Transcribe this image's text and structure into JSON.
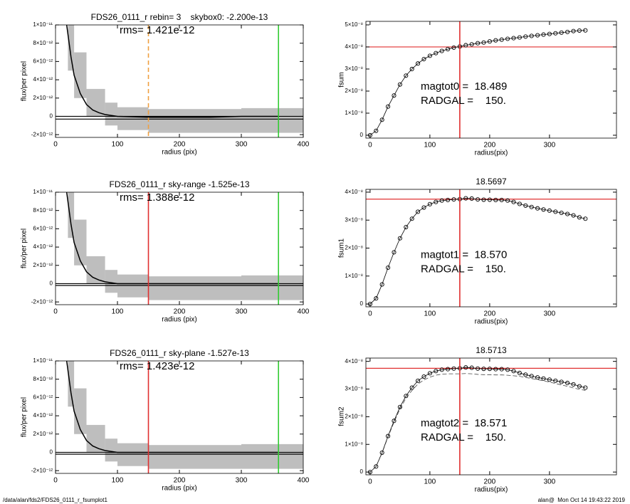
{
  "chart_data": [
    {
      "type": "line",
      "title": "FDS26_0111_r rebin= 3    skybox0: -2.200e-13",
      "xlabel": "radius (pix)",
      "ylabel": "flux/per pixel",
      "annotations": [
        "rms= 1.421e-12"
      ],
      "xlim": [
        0,
        400
      ],
      "xticks": [
        0,
        100,
        200,
        300,
        400
      ],
      "ylim": [
        -2.3e-12,
        1e-11
      ],
      "yticks": [
        {
          "value": -2e-12,
          "label": "-2×10⁻¹²"
        },
        0,
        {
          "value": 2e-12,
          "label": "2×10⁻¹²"
        },
        {
          "value": 4e-12,
          "label": "4×10⁻¹²"
        },
        {
          "value": 6e-12,
          "label": "6×10⁻¹²"
        },
        {
          "value": 8e-12,
          "label": "8×10⁻¹²"
        },
        {
          "value": 1e-11,
          "label": "1×10⁻¹¹"
        }
      ],
      "band": {
        "color": "#a8a8a8",
        "x": [
          20,
          30,
          50,
          80,
          100,
          150,
          200,
          300,
          350
        ],
        "upper": [
          1e-11,
          7e-12,
          3e-12,
          1.5e-12,
          1e-12,
          8e-13,
          8e-13,
          9e-13,
          9e-13
        ],
        "lower": [
          5e-12,
          2e-12,
          0,
          -1e-12,
          -1.5e-12,
          -1.8e-12,
          -1.8e-12,
          -1.8e-12,
          -1.8e-12
        ]
      },
      "x": [
        18,
        25,
        30,
        40,
        50,
        60,
        70,
        80,
        100,
        150,
        200,
        250,
        300,
        360
      ],
      "series": [
        {
          "color": "#000000",
          "values": [
            1e-11,
            6.5e-12,
            4.5e-12,
            2.5e-12,
            1.3e-12,
            7e-13,
            4e-13,
            2e-13,
            0,
            -1e-13,
            -1e-13,
            -1e-13,
            0,
            0
          ]
        }
      ],
      "hlines": [
        {
          "y": 0,
          "color": "#000000"
        },
        {
          "y": -3e-13,
          "color": "#000000"
        }
      ],
      "vlines": [
        {
          "x": 150,
          "color": "#f0a040",
          "dash": true
        },
        {
          "x": 360,
          "color": "#33cc33"
        }
      ]
    },
    {
      "type": "scatter",
      "xlabel": "radius(pix)",
      "ylabel": "fsum",
      "annotations": [
        "magtot0 =  18.489",
        "RADGAL =    150."
      ],
      "xlim": [
        -7,
        412
      ],
      "xticks": [
        0,
        100,
        200,
        300
      ],
      "ylim": [
        -1.3e-09,
        5.16e-08
      ],
      "yticks": [
        0,
        {
          "value": 1e-08,
          "label": "1×10⁻⁸"
        },
        {
          "value": 2e-08,
          "label": "2×10⁻⁸"
        },
        {
          "value": 3e-08,
          "label": "3×10⁻⁸"
        },
        {
          "value": 4e-08,
          "label": "4×10⁻⁸"
        },
        {
          "value": 5e-08,
          "label": "5×10⁻⁸"
        }
      ],
      "x": [
        0,
        10,
        20,
        30,
        40,
        50,
        60,
        70,
        80,
        90,
        100,
        110,
        120,
        130,
        140,
        150,
        160,
        170,
        180,
        190,
        200,
        210,
        220,
        230,
        240,
        250,
        260,
        270,
        280,
        290,
        300,
        310,
        320,
        330,
        340,
        350,
        360
      ],
      "series": [
        {
          "color": "#000000",
          "values": [
            0,
            2e-09,
            7e-09,
            1.3e-08,
            1.8e-08,
            2.3e-08,
            2.7e-08,
            3e-08,
            3.25e-08,
            3.45e-08,
            3.6e-08,
            3.72e-08,
            3.82e-08,
            3.9e-08,
            3.97e-08,
            4.02e-08,
            4.08e-08,
            4.12e-08,
            4.17e-08,
            4.2e-08,
            4.25e-08,
            4.3e-08,
            4.33e-08,
            4.37e-08,
            4.4e-08,
            4.43e-08,
            4.47e-08,
            4.5e-08,
            4.53e-08,
            4.56e-08,
            4.59e-08,
            4.62e-08,
            4.65e-08,
            4.68e-08,
            4.72e-08,
            4.74e-08,
            4.75e-08
          ]
        }
      ],
      "hlines": [
        {
          "y": 4e-08,
          "color": "#e03030"
        }
      ],
      "vlines": [
        {
          "x": 150,
          "color": "#e03030"
        }
      ]
    },
    {
      "type": "line",
      "title": "FDS26_0111_r sky-range -1.525e-13",
      "xlabel": "radius (pix)",
      "ylabel": "flux/per pixel",
      "annotations": [
        "rms= 1.388e-12"
      ],
      "xlim": [
        0,
        400
      ],
      "xticks": [
        0,
        100,
        200,
        300,
        400
      ],
      "ylim": [
        -2.3e-12,
        1e-11
      ],
      "yticks": [
        {
          "value": -2e-12,
          "label": "-2×10⁻¹²"
        },
        0,
        {
          "value": 2e-12,
          "label": "2×10⁻¹²"
        },
        {
          "value": 4e-12,
          "label": "4×10⁻¹²"
        },
        {
          "value": 6e-12,
          "label": "6×10⁻¹²"
        },
        {
          "value": 8e-12,
          "label": "8×10⁻¹²"
        },
        {
          "value": 1e-11,
          "label": "1×10⁻¹¹"
        }
      ],
      "band": {
        "color": "#a8a8a8",
        "x": [
          20,
          30,
          50,
          80,
          100,
          150,
          200,
          300,
          350
        ],
        "upper": [
          1e-11,
          7e-12,
          3e-12,
          1.5e-12,
          1e-12,
          8e-13,
          8e-13,
          9e-13,
          9e-13
        ],
        "lower": [
          5e-12,
          2e-12,
          0,
          -1e-12,
          -1.5e-12,
          -1.8e-12,
          -1.8e-12,
          -1.8e-12,
          -1.8e-12
        ]
      },
      "x": [
        18,
        25,
        30,
        40,
        50,
        60,
        70,
        80,
        100,
        150,
        200,
        250,
        300,
        360
      ],
      "series": [
        {
          "color": "#000000",
          "values": [
            1e-11,
            6.5e-12,
            4.5e-12,
            2.5e-12,
            1.3e-12,
            7e-13,
            4e-13,
            2e-13,
            0,
            0,
            0,
            0,
            0,
            0
          ]
        }
      ],
      "hlines": [
        {
          "y": 0,
          "color": "#000000"
        },
        {
          "y": -2e-13,
          "color": "#000000"
        }
      ],
      "vlines": [
        {
          "x": 150,
          "color": "#e03030"
        },
        {
          "x": 360,
          "color": "#33cc33"
        }
      ]
    },
    {
      "type": "scatter",
      "title": "18.5697",
      "xlabel": "radius(pix)",
      "ylabel": "fsum1",
      "annotations": [
        "magtot1 =  18.570",
        "RADGAL =    150."
      ],
      "xlim": [
        -7,
        412
      ],
      "xticks": [
        0,
        100,
        200,
        300
      ],
      "ylim": [
        -1e-09,
        4.1e-08
      ],
      "yticks": [
        0,
        {
          "value": 1e-08,
          "label": "1×10⁻⁸"
        },
        {
          "value": 2e-08,
          "label": "2×10⁻⁸"
        },
        {
          "value": 3e-08,
          "label": "3×10⁻⁸"
        },
        {
          "value": 4e-08,
          "label": "4×10⁻⁸"
        }
      ],
      "x": [
        0,
        10,
        20,
        30,
        40,
        50,
        60,
        70,
        80,
        90,
        100,
        110,
        120,
        130,
        140,
        150,
        160,
        170,
        180,
        190,
        200,
        210,
        220,
        230,
        240,
        250,
        260,
        270,
        280,
        290,
        300,
        310,
        320,
        330,
        340,
        350,
        360
      ],
      "series": [
        {
          "color": "#000000",
          "values": [
            0,
            2e-09,
            7e-09,
            1.3e-08,
            1.85e-08,
            2.35e-08,
            2.75e-08,
            3.05e-08,
            3.3e-08,
            3.45e-08,
            3.57e-08,
            3.65e-08,
            3.7e-08,
            3.72e-08,
            3.74e-08,
            3.75e-08,
            3.78e-08,
            3.77e-08,
            3.74e-08,
            3.73e-08,
            3.73e-08,
            3.72e-08,
            3.72e-08,
            3.7e-08,
            3.65e-08,
            3.58e-08,
            3.52e-08,
            3.47e-08,
            3.42e-08,
            3.38e-08,
            3.34e-08,
            3.3e-08,
            3.26e-08,
            3.22e-08,
            3.17e-08,
            3.1e-08,
            3.05e-08
          ]
        }
      ],
      "hlines": [
        {
          "y": 3.75e-08,
          "color": "#e03030"
        }
      ],
      "vlines": [
        {
          "x": 150,
          "color": "#e03030"
        }
      ]
    },
    {
      "type": "line",
      "title": "FDS26_0111_r sky-plane -1.527e-13",
      "xlabel": "radius (pix)",
      "ylabel": "flux/per pixel",
      "annotations": [
        "rms= 1.423e-12"
      ],
      "xlim": [
        0,
        400
      ],
      "xticks": [
        0,
        100,
        200,
        300,
        400
      ],
      "ylim": [
        -2.3e-12,
        1e-11
      ],
      "yticks": [
        {
          "value": -2e-12,
          "label": "-2×10⁻¹²"
        },
        0,
        {
          "value": 2e-12,
          "label": "2×10⁻¹²"
        },
        {
          "value": 4e-12,
          "label": "4×10⁻¹²"
        },
        {
          "value": 6e-12,
          "label": "6×10⁻¹²"
        },
        {
          "value": 8e-12,
          "label": "8×10⁻¹²"
        },
        {
          "value": 1e-11,
          "label": "1×10⁻¹¹"
        }
      ],
      "band": {
        "color": "#a8a8a8",
        "x": [
          20,
          30,
          50,
          80,
          100,
          150,
          200,
          300,
          350
        ],
        "upper": [
          1e-11,
          7e-12,
          3e-12,
          1.5e-12,
          1e-12,
          8e-13,
          8e-13,
          9e-13,
          9e-13
        ],
        "lower": [
          5e-12,
          2e-12,
          0,
          -1e-12,
          -1.5e-12,
          -1.8e-12,
          -1.8e-12,
          -1.8e-12,
          -1.8e-12
        ]
      },
      "x": [
        18,
        25,
        30,
        40,
        50,
        60,
        70,
        80,
        100,
        150,
        200,
        250,
        300,
        360
      ],
      "series": [
        {
          "color": "#000000",
          "values": [
            1e-11,
            6.5e-12,
            4.5e-12,
            2.5e-12,
            1.3e-12,
            7e-13,
            4e-13,
            2e-13,
            0,
            0,
            0,
            0,
            0,
            0
          ]
        }
      ],
      "hlines": [
        {
          "y": 0,
          "color": "#000000"
        },
        {
          "y": -2e-13,
          "color": "#000000"
        }
      ],
      "vlines": [
        {
          "x": 150,
          "color": "#e03030"
        },
        {
          "x": 360,
          "color": "#33cc33"
        }
      ]
    },
    {
      "type": "scatter",
      "title": "18.5713",
      "xlabel": "radius(pix)",
      "ylabel": "fsum2",
      "annotations": [
        "magtot2 =  18.571",
        "RADGAL =    150."
      ],
      "xlim": [
        -7,
        412
      ],
      "xticks": [
        0,
        100,
        200,
        300
      ],
      "ylim": [
        -1e-09,
        4.12e-08
      ],
      "yticks": [
        0,
        {
          "value": 1e-08,
          "label": "1×10⁻⁸"
        },
        {
          "value": 2e-08,
          "label": "2×10⁻⁸"
        },
        {
          "value": 3e-08,
          "label": "3×10⁻⁸"
        },
        {
          "value": 4e-08,
          "label": "4×10⁻⁸"
        }
      ],
      "x": [
        0,
        10,
        20,
        30,
        40,
        50,
        60,
        70,
        80,
        90,
        100,
        110,
        120,
        130,
        140,
        150,
        160,
        170,
        180,
        190,
        200,
        210,
        220,
        230,
        240,
        250,
        260,
        270,
        280,
        290,
        300,
        310,
        320,
        330,
        340,
        350,
        360
      ],
      "series": [
        {
          "color": "#000000",
          "values": [
            0,
            2e-09,
            7e-09,
            1.3e-08,
            1.85e-08,
            2.35e-08,
            2.75e-08,
            3.05e-08,
            3.3e-08,
            3.45e-08,
            3.57e-08,
            3.65e-08,
            3.7e-08,
            3.72e-08,
            3.74e-08,
            3.75e-08,
            3.78e-08,
            3.77e-08,
            3.74e-08,
            3.73e-08,
            3.73e-08,
            3.72e-08,
            3.72e-08,
            3.7e-08,
            3.65e-08,
            3.58e-08,
            3.52e-08,
            3.47e-08,
            3.42e-08,
            3.38e-08,
            3.34e-08,
            3.3e-08,
            3.26e-08,
            3.22e-08,
            3.17e-08,
            3.1e-08,
            3.05e-08
          ]
        },
        {
          "color": "#444444",
          "dash": true,
          "values": [
            0,
            2e-09,
            6.8e-09,
            1.27e-08,
            1.8e-08,
            2.28e-08,
            2.67e-08,
            2.95e-08,
            3.18e-08,
            3.33e-08,
            3.43e-08,
            3.5e-08,
            3.54e-08,
            3.55e-08,
            3.55e-08,
            3.55e-08,
            3.56e-08,
            3.55e-08,
            3.53e-08,
            3.52e-08,
            3.52e-08,
            3.51e-08,
            3.51e-08,
            3.5e-08,
            3.48e-08,
            3.46e-08,
            3.42e-08,
            3.38e-08,
            3.34e-08,
            3.3e-08,
            3.25e-08,
            3.2e-08,
            3.15e-08,
            3.1e-08,
            3.04e-08,
            2.99e-08,
            2.95e-08
          ]
        }
      ],
      "hlines": [
        {
          "y": 3.75e-08,
          "color": "#e03030"
        }
      ],
      "vlines": [
        {
          "x": 150,
          "color": "#e03030"
        }
      ]
    }
  ],
  "footer": {
    "path": "/data/alan/fds2/FDS26_0111_r_fsumplot1",
    "stamp": "alan@  Mon Oct 14 19:43:22 2019"
  }
}
